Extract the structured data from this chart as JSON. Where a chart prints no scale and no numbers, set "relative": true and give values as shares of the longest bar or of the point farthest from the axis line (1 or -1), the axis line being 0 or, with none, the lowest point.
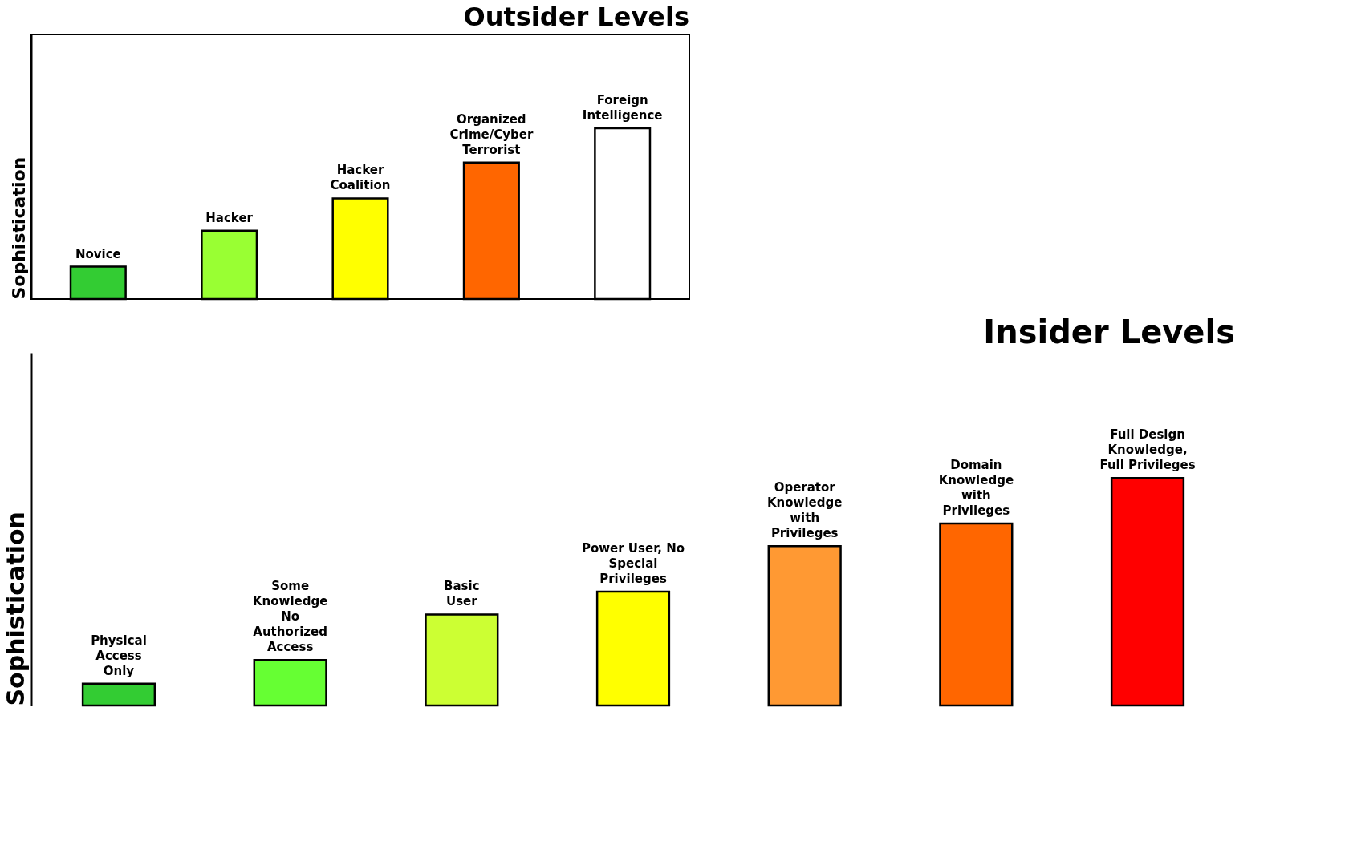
{
  "chart_data": [
    {
      "type": "bar",
      "title": "Outsider Levels",
      "ylabel": "Sophistication",
      "relative": true,
      "tick_labels": false,
      "categories": [
        "Novice",
        "Hacker",
        "Hacker\nCoalition",
        "Organized\nCrime/Cyber\nTerrorist",
        "Foreign\nIntelligence"
      ],
      "values": [
        0.19,
        0.4,
        0.59,
        0.8,
        1.0
      ],
      "colors": [
        "#33cc33",
        "#99ff33",
        "#ffff00",
        "#ff6600",
        "#ffffff"
      ]
    },
    {
      "type": "bar",
      "title": "Insider Levels",
      "ylabel": "Sophistication",
      "relative": true,
      "tick_labels": false,
      "categories": [
        "Physical\nAccess\nOnly",
        "Some\nKnowledge\nNo\nAuthorized\nAccess",
        "Basic\nUser",
        "Power User, No\nSpecial\nPrivileges",
        "Operator\nKnowledge\nwith\nPrivileges",
        "Domain\nKnowledge\nwith\nPrivileges",
        "Full Design\nKnowledge,\nFull Privileges"
      ],
      "values": [
        0.096,
        0.2,
        0.4,
        0.5,
        0.7,
        0.8,
        1.0
      ],
      "colors": [
        "#33cc33",
        "#66ff33",
        "#ccff33",
        "#ffff00",
        "#ff9933",
        "#ff6600",
        "#ff0000"
      ]
    }
  ]
}
